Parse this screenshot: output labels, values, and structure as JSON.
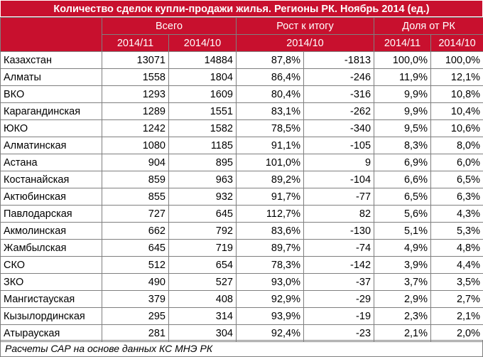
{
  "title": "Количество сделок купли-продажи жилья. Регионы РК. Ноябрь 2014 (ед.)",
  "groups": {
    "total": "Всего",
    "growth": "Рост к итогу",
    "share": "Доля от РК"
  },
  "subheaders": {
    "total_a": "2014/11",
    "total_b": "2014/10",
    "growth": "2014/10",
    "share_a": "2014/11",
    "share_b": "2014/10"
  },
  "rows": [
    {
      "region": "Казахстан",
      "v2014_11": "13071",
      "v2014_10": "14884",
      "growth_pct": "87,8%",
      "growth_abs": "-1813",
      "share_11": "100,0%",
      "share_10": "100,0%"
    },
    {
      "region": "Алматы",
      "v2014_11": "1558",
      "v2014_10": "1804",
      "growth_pct": "86,4%",
      "growth_abs": "-246",
      "share_11": "11,9%",
      "share_10": "12,1%"
    },
    {
      "region": "ВКО",
      "v2014_11": "1293",
      "v2014_10": "1609",
      "growth_pct": "80,4%",
      "growth_abs": "-316",
      "share_11": "9,9%",
      "share_10": "10,8%"
    },
    {
      "region": "Карагандинская",
      "v2014_11": "1289",
      "v2014_10": "1551",
      "growth_pct": "83,1%",
      "growth_abs": "-262",
      "share_11": "9,9%",
      "share_10": "10,4%"
    },
    {
      "region": "ЮКО",
      "v2014_11": "1242",
      "v2014_10": "1582",
      "growth_pct": "78,5%",
      "growth_abs": "-340",
      "share_11": "9,5%",
      "share_10": "10,6%"
    },
    {
      "region": "Алматинская",
      "v2014_11": "1080",
      "v2014_10": "1185",
      "growth_pct": "91,1%",
      "growth_abs": "-105",
      "share_11": "8,3%",
      "share_10": "8,0%"
    },
    {
      "region": "Астана",
      "v2014_11": "904",
      "v2014_10": "895",
      "growth_pct": "101,0%",
      "growth_abs": "9",
      "share_11": "6,9%",
      "share_10": "6,0%"
    },
    {
      "region": "Костанайская",
      "v2014_11": "859",
      "v2014_10": "963",
      "growth_pct": "89,2%",
      "growth_abs": "-104",
      "share_11": "6,6%",
      "share_10": "6,5%"
    },
    {
      "region": "Актюбинская",
      "v2014_11": "855",
      "v2014_10": "932",
      "growth_pct": "91,7%",
      "growth_abs": "-77",
      "share_11": "6,5%",
      "share_10": "6,3%"
    },
    {
      "region": "Павлодарская",
      "v2014_11": "727",
      "v2014_10": "645",
      "growth_pct": "112,7%",
      "growth_abs": "82",
      "share_11": "5,6%",
      "share_10": "4,3%"
    },
    {
      "region": "Акмолинская",
      "v2014_11": "662",
      "v2014_10": "792",
      "growth_pct": "83,6%",
      "growth_abs": "-130",
      "share_11": "5,1%",
      "share_10": "5,3%"
    },
    {
      "region": "Жамбылская",
      "v2014_11": "645",
      "v2014_10": "719",
      "growth_pct": "89,7%",
      "growth_abs": "-74",
      "share_11": "4,9%",
      "share_10": "4,8%"
    },
    {
      "region": "СКО",
      "v2014_11": "512",
      "v2014_10": "654",
      "growth_pct": "78,3%",
      "growth_abs": "-142",
      "share_11": "3,9%",
      "share_10": "4,4%"
    },
    {
      "region": "ЗКО",
      "v2014_11": "490",
      "v2014_10": "527",
      "growth_pct": "93,0%",
      "growth_abs": "-37",
      "share_11": "3,7%",
      "share_10": "3,5%"
    },
    {
      "region": "Мангистауская",
      "v2014_11": "379",
      "v2014_10": "408",
      "growth_pct": "92,9%",
      "growth_abs": "-29",
      "share_11": "2,9%",
      "share_10": "2,7%"
    },
    {
      "region": "Кызылординская",
      "v2014_11": "295",
      "v2014_10": "314",
      "growth_pct": "93,9%",
      "growth_abs": "-19",
      "share_11": "2,3%",
      "share_10": "2,1%"
    },
    {
      "region": "Атырауская",
      "v2014_11": "281",
      "v2014_10": "304",
      "growth_pct": "92,4%",
      "growth_abs": "-23",
      "share_11": "2,1%",
      "share_10": "2,0%"
    }
  ],
  "footer": "Расчеты САР на основе данных КС МНЭ РК",
  "colors": {
    "header_bg": "#c8102e",
    "header_text": "#ffffff"
  }
}
